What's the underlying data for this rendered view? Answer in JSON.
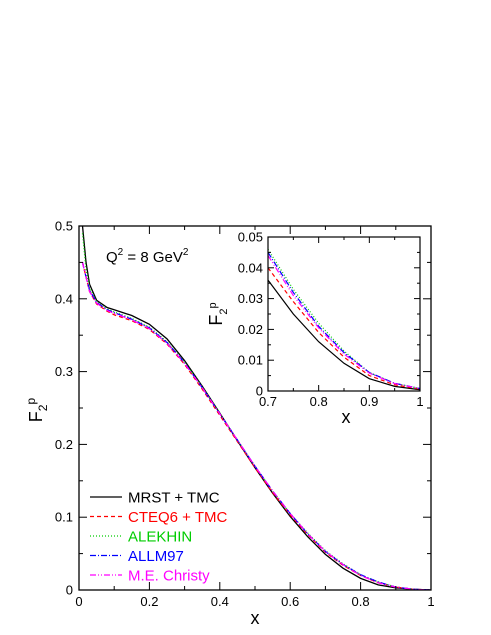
{
  "chart_data": [
    {
      "type": "line",
      "annotation": {
        "base": "Q",
        "sup1": "2",
        "mid": " = 8 GeV",
        "sup2": "2"
      },
      "xlabel": "x",
      "ylabel": {
        "base": "F",
        "sub": "2",
        "sup": "p"
      },
      "xlim": [
        0,
        1
      ],
      "ylim": [
        0,
        0.5
      ],
      "xticks": [
        "0",
        "0.2",
        "0.4",
        "0.6",
        "0.8",
        "1"
      ],
      "yticks": [
        "0",
        "0.1",
        "0.2",
        "0.3",
        "0.4",
        "0.5"
      ],
      "legend_position": "bottom-left",
      "series": [
        {
          "name": "MRST + TMC",
          "color": "#000000",
          "dash": "solid",
          "x": [
            0.01,
            0.02,
            0.03,
            0.05,
            0.08,
            0.1,
            0.15,
            0.2,
            0.25,
            0.3,
            0.35,
            0.4,
            0.45,
            0.5,
            0.55,
            0.6,
            0.65,
            0.7,
            0.75,
            0.8,
            0.85,
            0.9,
            0.95,
            1.0
          ],
          "y": [
            0.5,
            0.45,
            0.42,
            0.398,
            0.388,
            0.385,
            0.377,
            0.365,
            0.345,
            0.315,
            0.28,
            0.243,
            0.205,
            0.168,
            0.133,
            0.101,
            0.073,
            0.049,
            0.03,
            0.016,
            0.007,
            0.003,
            0.001,
            0.0
          ]
        },
        {
          "name": "CTEQ6 + TMC",
          "color": "#ff0000",
          "dash": "4,3",
          "x": [
            0.01,
            0.02,
            0.03,
            0.05,
            0.08,
            0.1,
            0.15,
            0.2,
            0.25,
            0.3,
            0.35,
            0.4,
            0.45,
            0.5,
            0.55,
            0.6,
            0.65,
            0.7,
            0.75,
            0.8,
            0.85,
            0.9,
            0.95,
            1.0
          ],
          "y": [
            0.45,
            0.43,
            0.41,
            0.393,
            0.383,
            0.378,
            0.37,
            0.358,
            0.338,
            0.31,
            0.276,
            0.24,
            0.204,
            0.168,
            0.134,
            0.103,
            0.076,
            0.052,
            0.034,
            0.02,
            0.01,
            0.004,
            0.001,
            0.0
          ]
        },
        {
          "name": "ALEKHIN",
          "color": "#00cc00",
          "dash": "1,2",
          "x": [
            0.01,
            0.02,
            0.03,
            0.05,
            0.08,
            0.1,
            0.15,
            0.2,
            0.25,
            0.3,
            0.35,
            0.4,
            0.45,
            0.5,
            0.55,
            0.6,
            0.65,
            0.7,
            0.75,
            0.8,
            0.85,
            0.9,
            0.95,
            1.0
          ],
          "y": [
            0.49,
            0.44,
            0.415,
            0.396,
            0.386,
            0.382,
            0.373,
            0.361,
            0.341,
            0.313,
            0.279,
            0.243,
            0.206,
            0.17,
            0.136,
            0.105,
            0.078,
            0.054,
            0.036,
            0.021,
            0.011,
            0.004,
            0.001,
            0.0
          ]
        },
        {
          "name": "ALLM97",
          "color": "#0000ff",
          "dash": "6,2,1,2",
          "x": [
            0.01,
            0.02,
            0.03,
            0.05,
            0.08,
            0.1,
            0.15,
            0.2,
            0.25,
            0.3,
            0.35,
            0.4,
            0.45,
            0.5,
            0.55,
            0.6,
            0.65,
            0.7,
            0.75,
            0.8,
            0.85,
            0.9,
            0.95,
            1.0
          ],
          "y": [
            0.45,
            0.43,
            0.412,
            0.395,
            0.385,
            0.381,
            0.372,
            0.36,
            0.34,
            0.312,
            0.278,
            0.242,
            0.206,
            0.17,
            0.136,
            0.105,
            0.077,
            0.053,
            0.035,
            0.021,
            0.011,
            0.004,
            0.001,
            0.0
          ]
        },
        {
          "name": "M.E. Christy",
          "color": "#ff00ff",
          "dash": "6,2,1,2,1,2",
          "x": [
            0.01,
            0.02,
            0.03,
            0.05,
            0.08,
            0.1,
            0.15,
            0.2,
            0.25,
            0.3,
            0.35,
            0.4,
            0.45,
            0.5,
            0.55,
            0.6,
            0.65,
            0.7,
            0.75,
            0.8,
            0.85,
            0.9,
            0.95,
            1.0
          ],
          "y": [
            0.45,
            0.43,
            0.41,
            0.394,
            0.384,
            0.38,
            0.371,
            0.359,
            0.339,
            0.311,
            0.278,
            0.242,
            0.206,
            0.17,
            0.136,
            0.105,
            0.077,
            0.053,
            0.035,
            0.02,
            0.01,
            0.004,
            0.001,
            0.0
          ]
        }
      ]
    },
    {
      "type": "line",
      "xlabel": "x",
      "ylabel": {
        "base": "F",
        "sub": "2",
        "sup": "p"
      },
      "xlim": [
        0.7,
        1
      ],
      "ylim": [
        0,
        0.05
      ],
      "xticks": [
        "0.7",
        "0.8",
        "0.9",
        "1"
      ],
      "yticks": [
        "0",
        "0.01",
        "0.02",
        "0.03",
        "0.04",
        "0.05"
      ],
      "series": [
        {
          "name": "MRST + TMC",
          "color": "#000000",
          "dash": "solid",
          "x": [
            0.7,
            0.75,
            0.8,
            0.85,
            0.9,
            0.95,
            1.0
          ],
          "y": [
            0.036,
            0.025,
            0.016,
            0.009,
            0.004,
            0.0015,
            0.0004
          ]
        },
        {
          "name": "CTEQ6 + TMC",
          "color": "#ff0000",
          "dash": "4,3",
          "x": [
            0.7,
            0.75,
            0.8,
            0.85,
            0.9,
            0.95,
            1.0
          ],
          "y": [
            0.04,
            0.029,
            0.019,
            0.011,
            0.005,
            0.002,
            0.0006
          ]
        },
        {
          "name": "ALEKHIN",
          "color": "#00cc00",
          "dash": "1,2",
          "x": [
            0.7,
            0.75,
            0.8,
            0.85,
            0.9,
            0.95,
            1.0
          ],
          "y": [
            0.046,
            0.033,
            0.022,
            0.013,
            0.006,
            0.0025,
            0.0008
          ]
        },
        {
          "name": "ALLM97",
          "color": "#0000ff",
          "dash": "6,2,1,2",
          "x": [
            0.7,
            0.75,
            0.8,
            0.85,
            0.9,
            0.95,
            1.0
          ],
          "y": [
            0.045,
            0.032,
            0.021,
            0.0125,
            0.006,
            0.0025,
            0.0008
          ]
        },
        {
          "name": "M.E. Christy",
          "color": "#ff00ff",
          "dash": "6,2,1,2,1,2",
          "x": [
            0.7,
            0.75,
            0.8,
            0.85,
            0.9,
            0.95,
            1.0
          ],
          "y": [
            0.044,
            0.031,
            0.0205,
            0.012,
            0.0058,
            0.0024,
            0.0008
          ]
        }
      ]
    }
  ]
}
